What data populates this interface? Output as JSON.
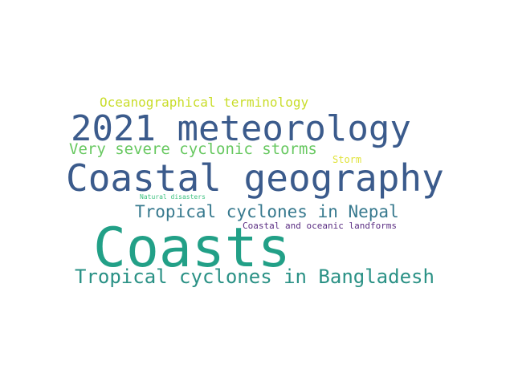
{
  "words": [
    {
      "text": "Coasts",
      "color": "#22a087"
    },
    {
      "text": "Coastal geography",
      "color": "#3b5b8c"
    },
    {
      "text": "2021 meteorology",
      "color": "#3b5b8c"
    },
    {
      "text": "Tropical cyclones in Bangladesh",
      "color": "#2a9185"
    },
    {
      "text": "Tropical cyclones in Nepal",
      "color": "#37798e"
    },
    {
      "text": "Very severe cyclonic storms",
      "color": "#67c860"
    },
    {
      "text": "Oceanographical terminology",
      "color": "#c9dd2a"
    },
    {
      "text": "Storm",
      "color": "#e0e33a"
    },
    {
      "text": "Coastal and oceanic landforms",
      "color": "#5a2d82"
    },
    {
      "text": "Natural disasters",
      "color": "#3ec281"
    }
  ]
}
